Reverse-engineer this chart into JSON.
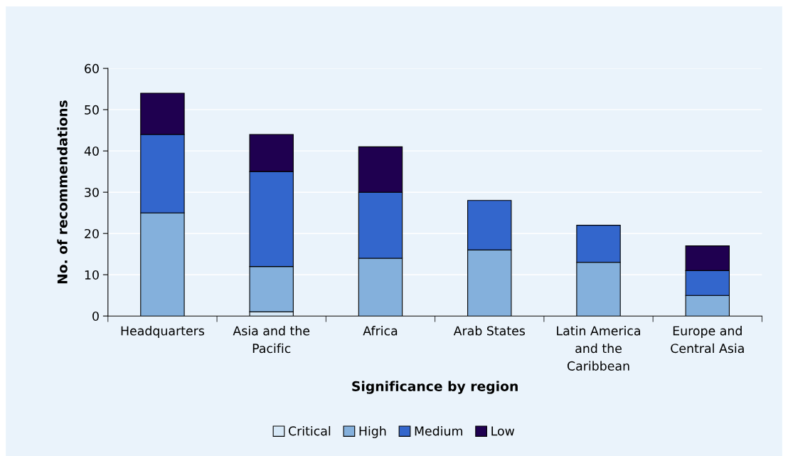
{
  "chart_data": {
    "type": "bar",
    "stacked": true,
    "xlabel": "Significance by region",
    "ylabel": "No. of recommendations",
    "categories": [
      "Headquarters",
      "Asia and the\nPacific",
      "Africa",
      "Arab States",
      "Latin America\nand the\nCaribbean",
      "Europe and\nCentral Asia"
    ],
    "series": [
      {
        "name": "Critical",
        "color": "#d6e8f7",
        "values": [
          0,
          1,
          0,
          0,
          0,
          0
        ]
      },
      {
        "name": "High",
        "color": "#84b0dc",
        "values": [
          25,
          11,
          14,
          16,
          13,
          5
        ]
      },
      {
        "name": "Medium",
        "color": "#3366cc",
        "values": [
          19,
          23,
          16,
          12,
          9,
          6
        ]
      },
      {
        "name": "Low",
        "color": "#1f0050",
        "values": [
          10,
          9,
          11,
          0,
          0,
          6
        ]
      }
    ],
    "ylim": [
      0,
      60
    ],
    "yticks": [
      0,
      10,
      20,
      30,
      40,
      50,
      60
    ],
    "grid": "y",
    "legend": "bottom"
  }
}
